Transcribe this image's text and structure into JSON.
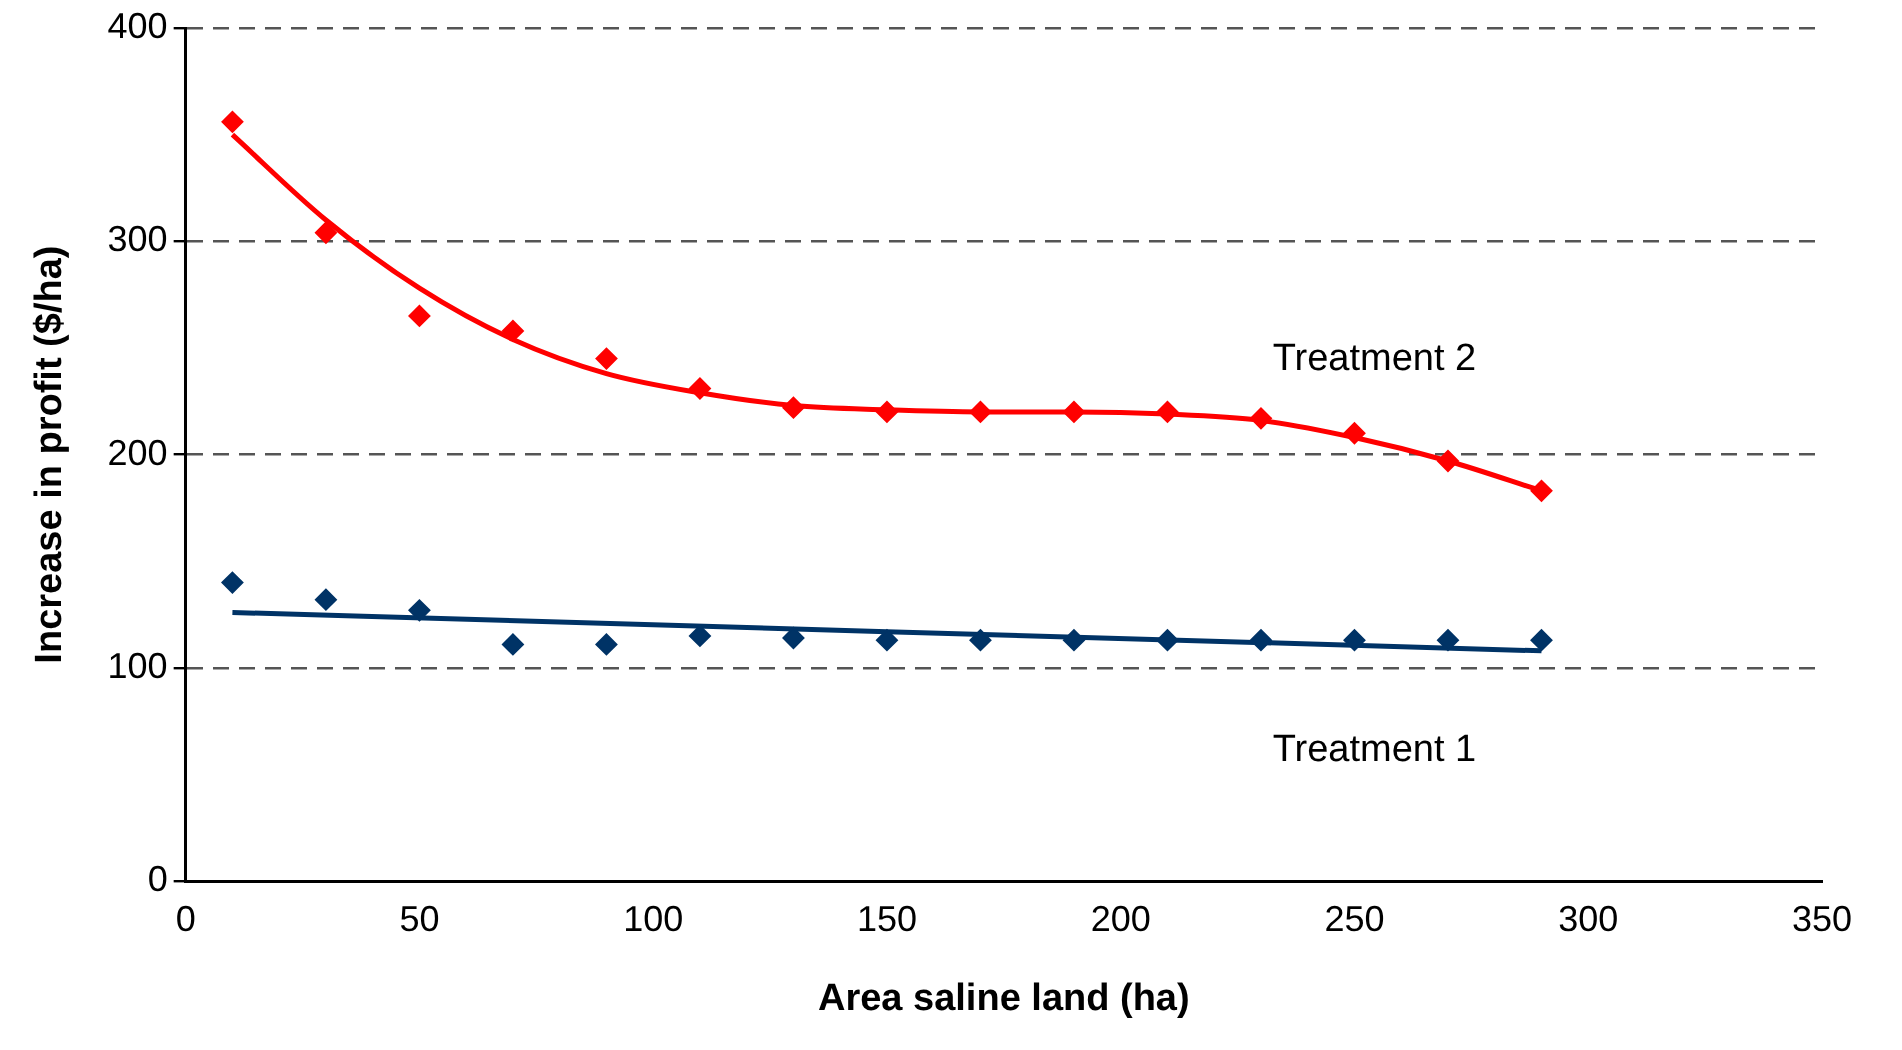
{
  "chart_data": {
    "type": "scatter",
    "xlabel": "Area saline land (ha)",
    "ylabel": "Increase in profit ($/ha)",
    "xlim": [
      0,
      350
    ],
    "xticks": [
      0,
      50,
      100,
      150,
      200,
      250,
      300,
      350
    ],
    "ylim": [
      0,
      400
    ],
    "yticks": [
      0,
      100,
      200,
      300,
      400
    ],
    "grid": "y",
    "legend": false,
    "marker": "diamond",
    "series": [
      {
        "name": "Treatment 2",
        "color": "#ff0000",
        "x": [
          10,
          30,
          50,
          70,
          90,
          110,
          130,
          150,
          170,
          190,
          210,
          230,
          250,
          270,
          290
        ],
        "values": [
          356,
          304,
          265,
          258,
          245,
          231,
          222,
          220,
          220,
          220,
          220,
          217,
          210,
          197,
          183
        ]
      },
      {
        "name": "Treatment 1",
        "color": "#003366",
        "x": [
          10,
          30,
          50,
          70,
          90,
          110,
          130,
          150,
          170,
          190,
          210,
          230,
          250,
          270,
          290
        ],
        "values": [
          140,
          132,
          127,
          111,
          111,
          115,
          114,
          113,
          113,
          113,
          113,
          113,
          113,
          113,
          113
        ]
      },
      {
        "type": "line",
        "color": "#ff0000",
        "marker": "none",
        "x": [
          10,
          30,
          50,
          70,
          90,
          110,
          130,
          150,
          170,
          190,
          210,
          230,
          250,
          270,
          290
        ],
        "values": [
          350,
          310,
          278,
          254,
          238,
          229,
          223,
          221,
          220,
          220,
          219,
          216,
          208,
          197,
          183
        ]
      },
      {
        "type": "line",
        "color": "#003366",
        "marker": "none",
        "x": [
          10,
          150,
          290
        ],
        "values": [
          126,
          117,
          108
        ]
      }
    ]
  }
}
